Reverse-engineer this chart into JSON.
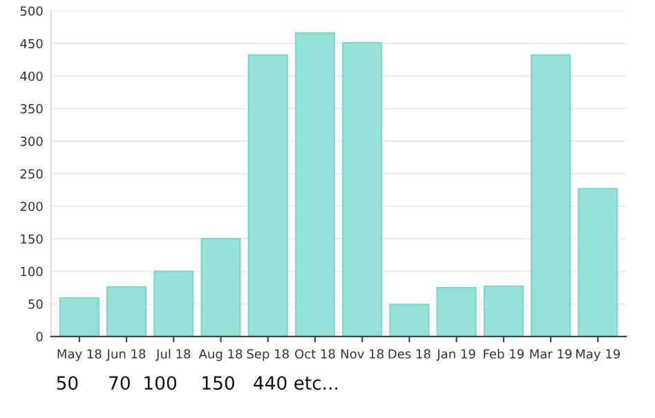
{
  "chart_data": {
    "type": "bar",
    "categories": [
      "May 18",
      "Jun 18",
      "Jul 18",
      "Aug 18",
      "Sep 18",
      "Oct 18",
      "Nov 18",
      "Des 18",
      "Jan 19",
      "Feb 19",
      "Mar 19",
      "May 19"
    ],
    "values": [
      59,
      76,
      100,
      150,
      432,
      466,
      451,
      49,
      75,
      77,
      432,
      227
    ],
    "color": "#96e2d8",
    "ylim": [
      0,
      500
    ],
    "yticks": [
      0,
      50,
      100,
      150,
      200,
      250,
      300,
      350,
      400,
      450,
      500
    ],
    "grid": "y",
    "annotations": [
      "50     70  100    150   440 etc..."
    ]
  }
}
